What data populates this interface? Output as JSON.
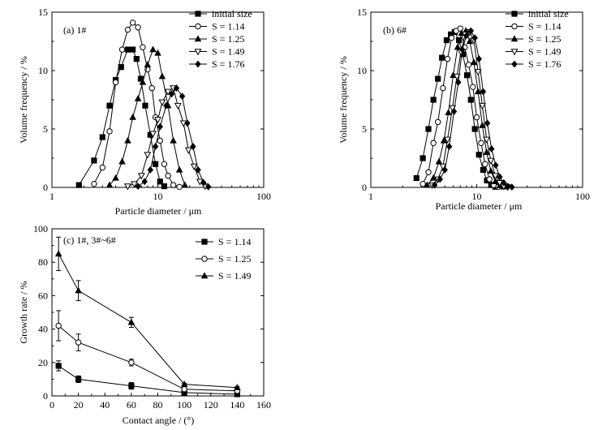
{
  "chart_data": [
    {
      "type": "line",
      "panel_label": "(a) 1#",
      "xlabel": "Particle diameter / μm",
      "ylabel": "Volume frequency / %",
      "xscale": "log",
      "xlim": [
        1,
        100
      ],
      "ylim": [
        0,
        15
      ],
      "xticks": [
        "1",
        "10",
        "100"
      ],
      "yticks": [
        "0",
        "5",
        "10",
        "15"
      ],
      "legend_position": "top-right",
      "legend_labels": [
        "initial size",
        "S = 1.14",
        "S = 1.25",
        "S = 1.49",
        "S = 1.76"
      ],
      "series": [
        {
          "name": "initial size",
          "marker": "square",
          "x": [
            1.8,
            2.5,
            3.0,
            3.5,
            4.0,
            4.5,
            5.2,
            5.8,
            6.3,
            6.9,
            7.6,
            8.5,
            9.5,
            10.5,
            11.5
          ],
          "y": [
            0.2,
            2.3,
            4.3,
            7.0,
            9.2,
            10.3,
            11.8,
            11.8,
            11.0,
            9.3,
            7.0,
            4.5,
            2.0,
            0.5,
            0.1
          ]
        },
        {
          "name": "S = 1.14",
          "marker": "circle-open",
          "x": [
            2.5,
            3.0,
            3.5,
            4.0,
            4.6,
            5.2,
            5.8,
            6.5,
            7.2,
            8.0,
            8.8,
            9.5,
            10.5,
            11.5,
            12.5,
            14.0,
            16.0
          ],
          "y": [
            0.3,
            1.7,
            4.8,
            9.0,
            11.8,
            13.5,
            14.1,
            13.7,
            12.0,
            10.1,
            8.5,
            6.0,
            4.0,
            2.0,
            1.0,
            0.2,
            0.05
          ]
        },
        {
          "name": "S = 1.25",
          "marker": "triangle-up",
          "x": [
            3.5,
            4.0,
            4.6,
            5.2,
            5.8,
            6.5,
            7.2,
            8.0,
            9.0,
            10.0,
            11.0,
            12.5,
            14.0,
            16.0,
            18.0
          ],
          "y": [
            0.2,
            0.8,
            2.2,
            4.0,
            6.0,
            7.6,
            9.0,
            10.5,
            11.8,
            11.5,
            9.5,
            7.0,
            4.0,
            1.5,
            0.2
          ]
        },
        {
          "name": "S = 1.49",
          "marker": "triangle-down-open",
          "x": [
            5.2,
            6.0,
            7.0,
            8.0,
            9.0,
            10.0,
            11.0,
            12.5,
            14.0,
            15.5,
            17.5,
            19.5,
            22.0,
            25.0,
            28.0
          ],
          "y": [
            0.1,
            0.3,
            1.0,
            2.8,
            4.6,
            5.8,
            7.3,
            8.2,
            8.5,
            7.0,
            5.5,
            3.2,
            1.8,
            0.5,
            0.1
          ]
        },
        {
          "name": "S = 1.76",
          "marker": "diamond",
          "x": [
            6.5,
            7.5,
            8.5,
            9.5,
            10.5,
            12.0,
            13.5,
            15.0,
            17.0,
            19.0,
            21.5,
            24.0,
            27.0,
            30.0
          ],
          "y": [
            0.1,
            0.5,
            1.5,
            3.5,
            5.2,
            7.0,
            8.0,
            8.5,
            7.8,
            5.5,
            3.5,
            1.5,
            0.4,
            0.05
          ]
        }
      ]
    },
    {
      "type": "line",
      "panel_label": "(b) 6#",
      "xlabel": "Particle diameter / μm",
      "ylabel": "Volume frequency / %",
      "xscale": "log",
      "xlim": [
        1,
        100
      ],
      "ylim": [
        0,
        15
      ],
      "xticks": [
        "1",
        "10",
        "100"
      ],
      "yticks": [
        "0",
        "5",
        "10",
        "15"
      ],
      "legend_position": "top-right",
      "legend_labels": [
        "initial size",
        "S = 1.14",
        "S = 1.25",
        "S = 1.49",
        "S = 1.76"
      ],
      "series": [
        {
          "name": "initial size",
          "marker": "square",
          "x": [
            2.7,
            3.1,
            3.5,
            3.9,
            4.3,
            4.7,
            5.2,
            5.7,
            6.2,
            6.8,
            7.4,
            8.1,
            8.8,
            9.6,
            10.5,
            11.5,
            12.5,
            13.7,
            15.0
          ],
          "y": [
            0.8,
            2.5,
            5.0,
            7.5,
            9.3,
            11.1,
            12.6,
            13.1,
            13.3,
            12.6,
            11.4,
            9.6,
            7.5,
            5.0,
            2.8,
            1.5,
            0.6,
            0.2,
            0.05
          ]
        },
        {
          "name": "S = 1.14",
          "marker": "circle-open",
          "x": [
            3.1,
            3.5,
            3.9,
            4.3,
            4.8,
            5.3,
            5.8,
            6.4,
            7.0,
            7.7,
            8.4,
            9.2,
            10.0,
            11.0,
            12.0,
            13.2,
            14.5,
            16.0
          ],
          "y": [
            0.3,
            1.3,
            3.8,
            5.6,
            8.5,
            11.0,
            12.8,
            13.4,
            13.6,
            12.0,
            10.5,
            8.6,
            6.0,
            3.8,
            2.0,
            0.7,
            0.2,
            0.05
          ]
        },
        {
          "name": "S = 1.25",
          "marker": "triangle-up",
          "x": [
            3.4,
            3.9,
            4.4,
            4.9,
            5.4,
            6.0,
            6.6,
            7.2,
            7.9,
            8.6,
            9.4,
            10.3,
            11.3,
            12.4,
            13.6,
            15.0,
            16.5,
            18.0
          ],
          "y": [
            0.2,
            0.8,
            2.2,
            4.0,
            6.4,
            9.6,
            12.0,
            13.2,
            13.4,
            12.5,
            10.7,
            8.2,
            5.3,
            3.0,
            1.4,
            0.5,
            0.15,
            0.05
          ]
        },
        {
          "name": "S = 1.49",
          "marker": "triangle-down-open",
          "x": [
            3.8,
            4.3,
            4.8,
            5.3,
            5.9,
            6.5,
            7.1,
            7.8,
            8.6,
            9.4,
            10.3,
            11.3,
            12.4,
            13.6,
            15.0,
            16.5,
            18.0,
            19.7
          ],
          "y": [
            0.2,
            0.7,
            1.8,
            4.1,
            6.8,
            9.5,
            11.6,
            13.1,
            13.3,
            12.6,
            9.9,
            7.0,
            4.1,
            2.3,
            1.0,
            0.4,
            0.1,
            0.03
          ]
        },
        {
          "name": "S = 1.76",
          "marker": "diamond",
          "x": [
            4.0,
            4.5,
            5.0,
            5.5,
            6.1,
            6.7,
            7.3,
            8.0,
            8.8,
            9.6,
            10.5,
            11.5,
            12.6,
            13.8,
            15.1,
            16.5,
            18.0,
            19.7,
            21.5
          ],
          "y": [
            0.2,
            0.7,
            1.5,
            3.5,
            6.5,
            9.0,
            11.8,
            13.0,
            13.4,
            12.8,
            11.0,
            8.2,
            5.5,
            3.3,
            1.9,
            0.9,
            0.4,
            0.1,
            0.03
          ]
        }
      ]
    },
    {
      "type": "line",
      "panel_label": "(c) 1#, 3#~6#",
      "xlabel": "Contact angle / (°)",
      "ylabel": "Growth rate / %",
      "xlim": [
        0,
        160
      ],
      "ylim": [
        0,
        100
      ],
      "xticks": [
        "0",
        "20",
        "40",
        "60",
        "80",
        "100",
        "120",
        "140",
        "160"
      ],
      "yticks": [
        "0",
        "20",
        "40",
        "60",
        "80",
        "100"
      ],
      "legend_position": "top-right",
      "legend_labels": [
        "S = 1.14",
        "S = 1.25",
        "S = 1.49"
      ],
      "series": [
        {
          "name": "S = 1.14",
          "marker": "square",
          "x": [
            5,
            20,
            60,
            100,
            140
          ],
          "y": [
            18,
            10,
            6,
            2,
            1
          ],
          "err": [
            3,
            2,
            2,
            0.5,
            0.5
          ]
        },
        {
          "name": "S = 1.25",
          "marker": "circle-open",
          "x": [
            5,
            20,
            60,
            100,
            140
          ],
          "y": [
            42,
            32,
            20,
            4,
            3
          ],
          "err": [
            9,
            5,
            2,
            0.5,
            0.5
          ]
        },
        {
          "name": "S = 1.49",
          "marker": "triangle-up",
          "x": [
            5,
            20,
            60,
            100,
            140
          ],
          "y": [
            85,
            63,
            44,
            7,
            5
          ],
          "err": [
            10,
            6,
            3,
            0.5,
            0.5
          ]
        }
      ]
    }
  ]
}
